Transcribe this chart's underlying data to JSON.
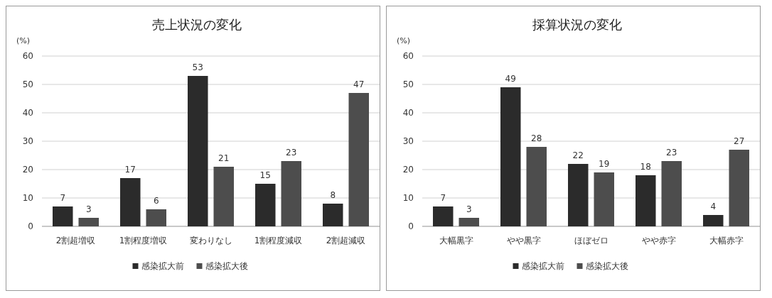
{
  "chart_data": [
    {
      "type": "bar",
      "title": "売上状況の変化",
      "ylabel": "(%)",
      "categories": [
        "2割超増収",
        "1割程度増収",
        "変わりなし",
        "1割程度減収",
        "2割超減収"
      ],
      "series": [
        {
          "name": "感染拡大前",
          "color": "#2b2b2b",
          "values": [
            7,
            17,
            53,
            15,
            8
          ]
        },
        {
          "name": "感染拡大後",
          "color": "#4d4d4d",
          "values": [
            3,
            6,
            21,
            23,
            47
          ]
        }
      ],
      "ylim": [
        0,
        60
      ],
      "yticks": [
        0,
        10,
        20,
        30,
        40,
        50,
        60
      ],
      "grid": "y",
      "legend": "bottom",
      "data_labels": true
    },
    {
      "type": "bar",
      "title": "採算状況の変化",
      "ylabel": "(%)",
      "categories": [
        "大幅黒字",
        "やや黒字",
        "ほぼゼロ",
        "やや赤字",
        "大幅赤字"
      ],
      "series": [
        {
          "name": "感染拡大前",
          "color": "#2b2b2b",
          "values": [
            7,
            49,
            22,
            18,
            4
          ]
        },
        {
          "name": "感染拡大後",
          "color": "#4d4d4d",
          "values": [
            3,
            28,
            19,
            23,
            27
          ]
        }
      ],
      "ylim": [
        0,
        60
      ],
      "yticks": [
        0,
        10,
        20,
        30,
        40,
        50,
        60
      ],
      "grid": "y",
      "legend": "bottom",
      "data_labels": true
    }
  ]
}
